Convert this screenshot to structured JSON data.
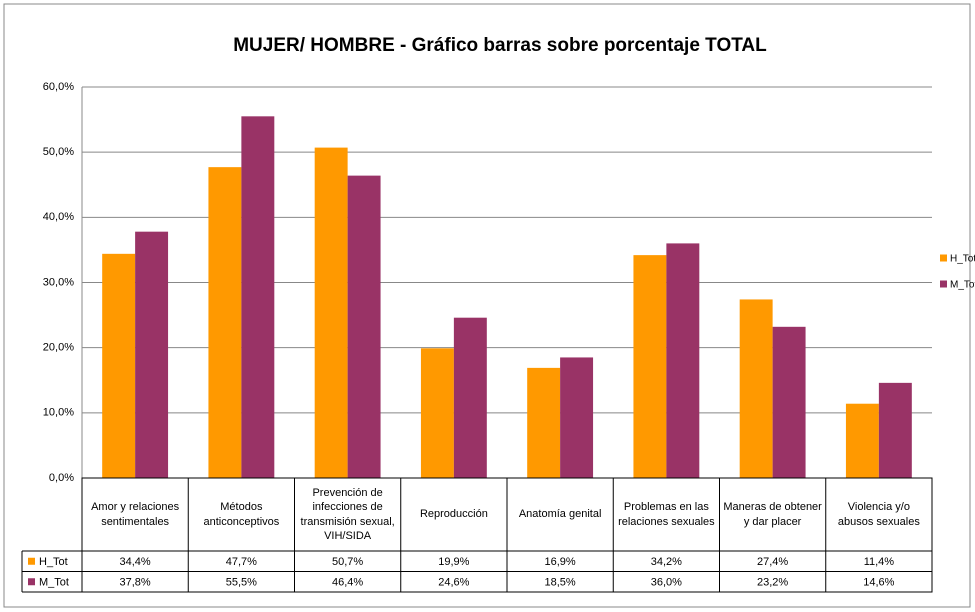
{
  "chart_data": {
    "type": "bar",
    "title": "MUJER/ HOMBRE - Gráfico barras sobre porcentaje TOTAL",
    "categories": [
      "Amor y relaciones sentimentales",
      "Métodos anticonceptivos",
      "Prevención de infecciones de transmisión sexual, VIH/SIDA",
      "Reproducción",
      "Anatomía genital",
      "Problemas en las relaciones sexuales",
      "Maneras de obtener y dar placer",
      "Violencia y/o abusos sexuales"
    ],
    "series": [
      {
        "name": "H_Tot",
        "color": "#ff9900",
        "values": [
          34.4,
          47.7,
          50.7,
          19.9,
          16.9,
          34.2,
          27.4,
          11.4
        ],
        "value_labels": [
          "34,4%",
          "47,7%",
          "50,7%",
          "19,9%",
          "16,9%",
          "34,2%",
          "27,4%",
          "11,4%"
        ]
      },
      {
        "name": "M_Tot",
        "color": "#993366",
        "values": [
          37.8,
          55.5,
          46.4,
          24.6,
          18.5,
          36.0,
          23.2,
          14.6
        ],
        "value_labels": [
          "37,8%",
          "55,5%",
          "46,4%",
          "24,6%",
          "18,5%",
          "36,0%",
          "23,2%",
          "14,6%"
        ]
      }
    ],
    "ylim": [
      0,
      60
    ],
    "yticks": [
      {
        "value": 0,
        "label": "0,0%"
      },
      {
        "value": 10,
        "label": "10,0%"
      },
      {
        "value": 20,
        "label": "20,0%"
      },
      {
        "value": 30,
        "label": "30,0%"
      },
      {
        "value": 40,
        "label": "40,0%"
      },
      {
        "value": 50,
        "label": "50,0%"
      },
      {
        "value": 60,
        "label": "60,0%"
      }
    ],
    "grid": true,
    "legend": "right"
  }
}
